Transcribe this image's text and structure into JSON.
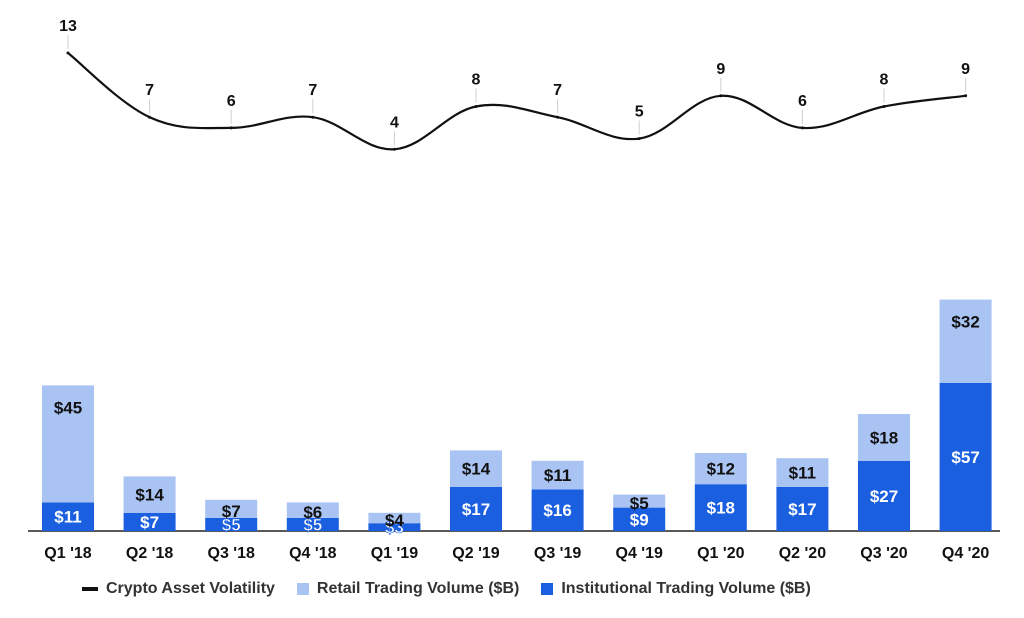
{
  "colors": {
    "retail": "#a9c3f2",
    "institutional": "#1a5fe0",
    "line": "#111111",
    "axis": "#222222"
  },
  "legend": {
    "volatility": "Crypto Asset Volatility",
    "retail": "Retail Trading Volume ($B)",
    "institutional": "Institutional Trading Volume ($B)"
  },
  "chart_data": {
    "type": "bar",
    "stacked": true,
    "categories": [
      "Q1 '18",
      "Q2 '18",
      "Q3 '18",
      "Q4 '18",
      "Q1 '19",
      "Q2 '19",
      "Q3 '19",
      "Q4 '19",
      "Q1 '20",
      "Q2 '20",
      "Q3 '20",
      "Q4 '20"
    ],
    "series": [
      {
        "name": "Institutional Trading Volume ($B)",
        "values": [
          11,
          7,
          5,
          5,
          3,
          17,
          16,
          9,
          18,
          17,
          27,
          57
        ],
        "labels": [
          "$11",
          "$7",
          "$5",
          "$5",
          "$3",
          "$17",
          "$16",
          "$9",
          "$18",
          "$17",
          "$27",
          "$57"
        ]
      },
      {
        "name": "Retail Trading Volume ($B)",
        "values": [
          45,
          14,
          7,
          6,
          4,
          14,
          11,
          5,
          12,
          11,
          18,
          32
        ],
        "labels": [
          "$45",
          "$14",
          "$7",
          "$6",
          "$4",
          "$14",
          "$11",
          "$5",
          "$12",
          "$11",
          "$18",
          "$32"
        ]
      }
    ],
    "line_series": {
      "name": "Crypto Asset Volatility",
      "values": [
        13,
        7,
        6,
        7,
        4,
        8,
        7,
        5,
        9,
        6,
        8,
        9
      ]
    },
    "legend_position": "bottom",
    "grid": false
  }
}
